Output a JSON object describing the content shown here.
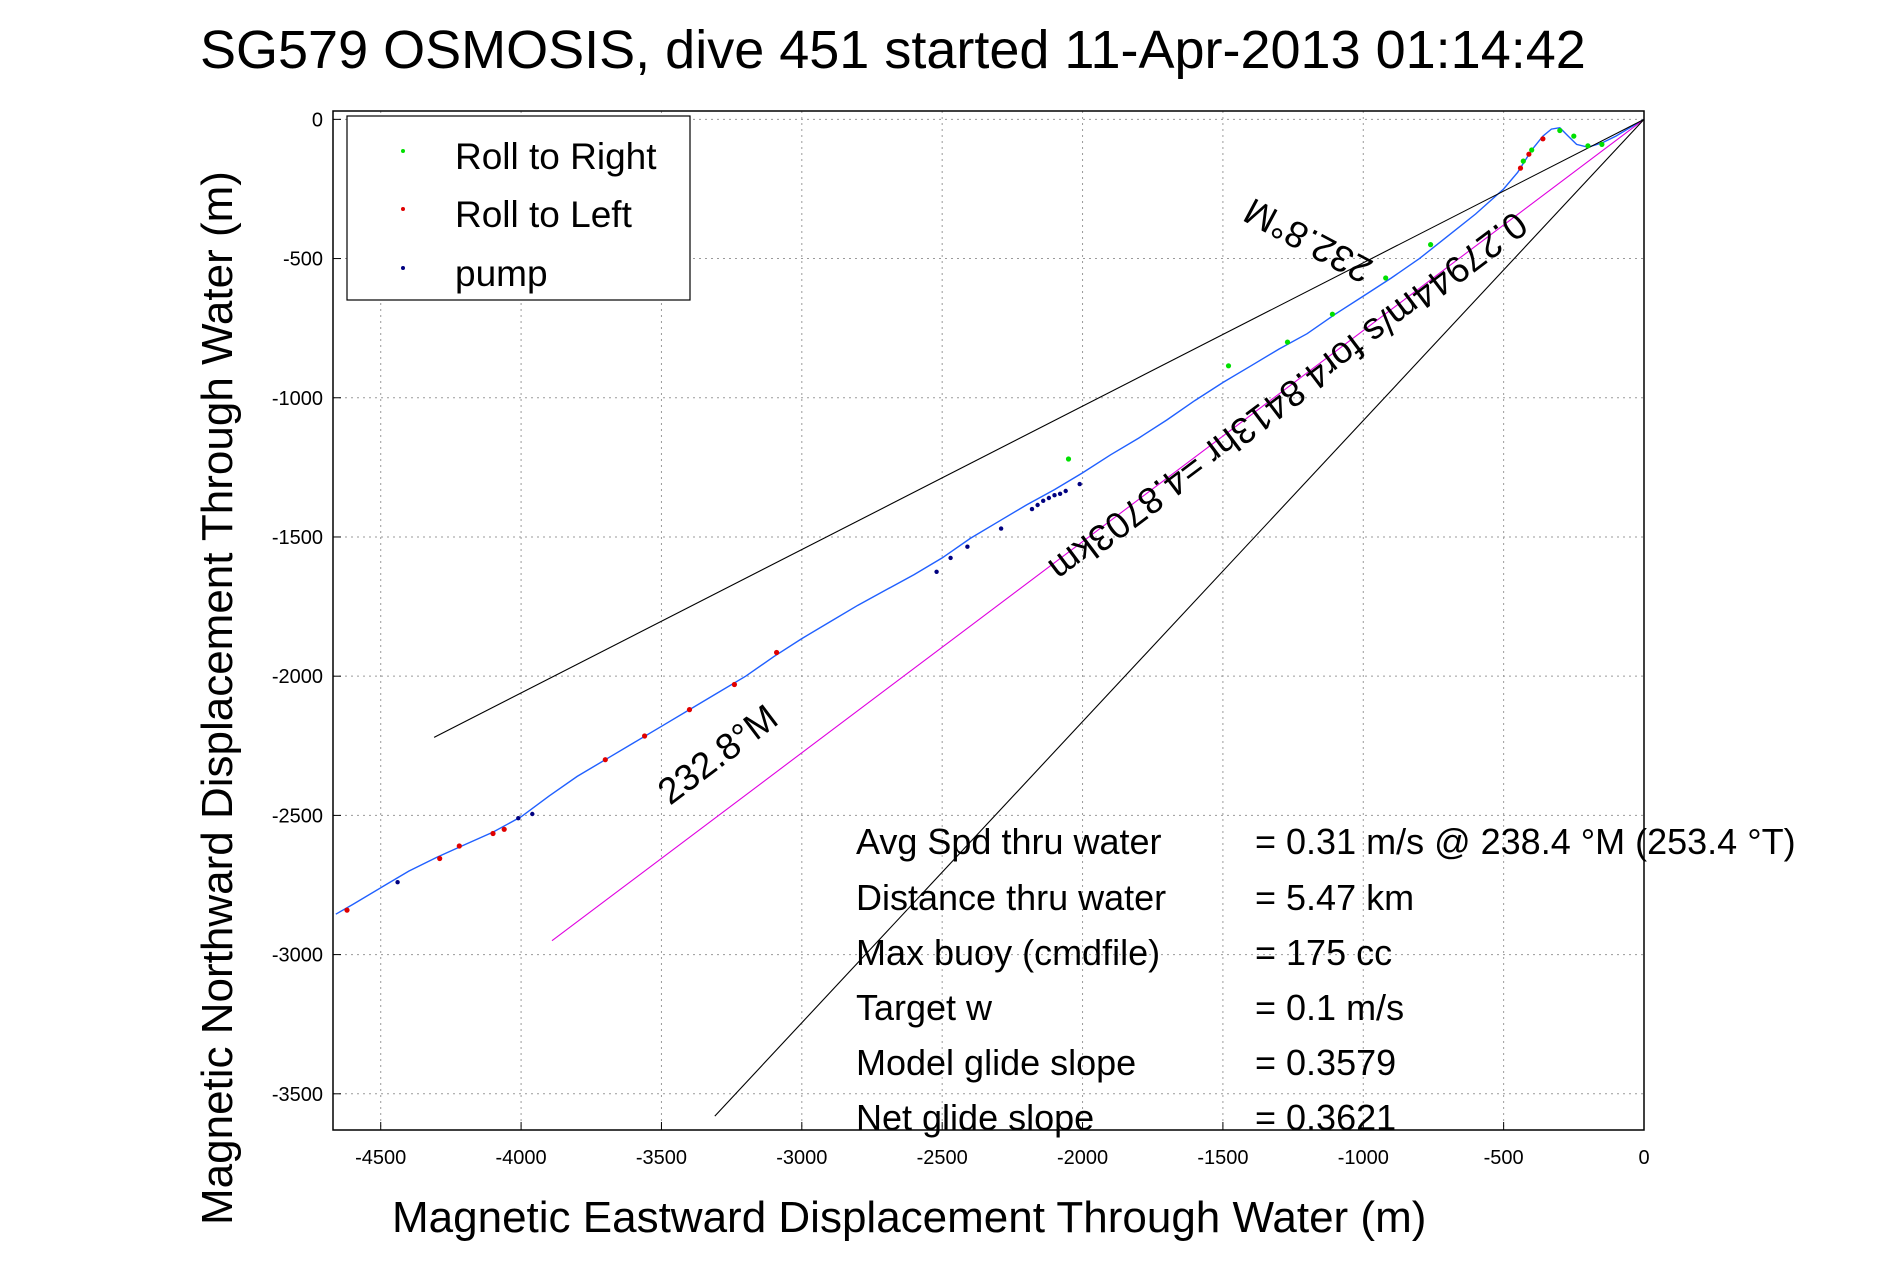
{
  "chart_data": {
    "type": "line",
    "title": "SG579 OSMOSIS, dive 451 started 11-Apr-2013 01:14:42",
    "xlabel": "Magnetic Eastward Displacement Through Water (m)",
    "ylabel": "Magnetic Northward Displacement Through Water (m)",
    "xlim": [
      -4670,
      0
    ],
    "ylim": [
      -3630,
      30
    ],
    "grid": true,
    "legend_position": "top-left",
    "x_ticks": [
      -4500,
      -4000,
      -3500,
      -3000,
      -2500,
      -2000,
      -1500,
      -1000,
      -500,
      0
    ],
    "x_tick_labels": [
      "-4500",
      "-4000",
      "-3500",
      "-3000",
      "-2500",
      "-2000",
      "-1500",
      "-1000",
      "-500",
      "0"
    ],
    "y_ticks": [
      0,
      -500,
      -1000,
      -1500,
      -2000,
      -2500,
      -3000,
      -3500
    ],
    "y_tick_labels": [
      "0",
      "-500",
      "-1000",
      "-1500",
      "-2000",
      "-2500",
      "-3000",
      "-3500"
    ],
    "legend": [
      {
        "label": "Roll to Right",
        "color": "#00e000"
      },
      {
        "label": "Roll to Left",
        "color": "#e00000"
      },
      {
        "label": "pump",
        "color": "#000080"
      }
    ],
    "series": [
      {
        "color": "#2060ff",
        "x": [
          -4660,
          -4600,
          -4500,
          -4400,
          -4300,
          -4200,
          -4100,
          -4000,
          -3900,
          -3800,
          -3700,
          -3600,
          -3500,
          -3400,
          -3300,
          -3200,
          -3100,
          -3000,
          -2900,
          -2800,
          -2700,
          -2600,
          -2500,
          -2400,
          -2300,
          -2200,
          -2100,
          -2000,
          -1900,
          -1800,
          -1700,
          -1600,
          -1500,
          -1400,
          -1300,
          -1200,
          -1100,
          -1000,
          -900,
          -800,
          -700,
          -600,
          -500,
          -450,
          -400,
          -360,
          -330,
          -300,
          -270,
          -240,
          -200,
          -150,
          -100,
          -50,
          0
        ],
        "y": [
          -2855,
          -2820,
          -2760,
          -2700,
          -2650,
          -2605,
          -2560,
          -2505,
          -2430,
          -2360,
          -2300,
          -2240,
          -2180,
          -2120,
          -2060,
          -2000,
          -1930,
          -1865,
          -1805,
          -1745,
          -1690,
          -1635,
          -1575,
          -1505,
          -1445,
          -1385,
          -1330,
          -1270,
          -1205,
          -1145,
          -1080,
          -1010,
          -945,
          -885,
          -825,
          -770,
          -700,
          -635,
          -570,
          -500,
          -420,
          -340,
          -250,
          -190,
          -110,
          -60,
          -35,
          -30,
          -60,
          -90,
          -100,
          -85,
          -60,
          -30,
          0
        ]
      },
      {
        "color": "#e000e0",
        "x": [
          -3890,
          0
        ],
        "y": [
          -2950,
          0
        ]
      },
      {
        "color": "#000000",
        "x": [
          -4310,
          0
        ],
        "y": [
          -2220,
          0
        ]
      },
      {
        "color": "#000000",
        "x": [
          0,
          -3310
        ],
        "y": [
          0,
          -3580
        ]
      }
    ],
    "roll_right_x": [
      -1480,
      -1270,
      -1110,
      -2050,
      -920,
      -760,
      -430,
      -400,
      -300,
      -250,
      -200,
      -150
    ],
    "roll_right_y": [
      -885,
      -800,
      -700,
      -1220,
      -570,
      -450,
      -150,
      -110,
      -40,
      -60,
      -95,
      -90
    ],
    "roll_left_x": [
      -4620,
      -4290,
      -4220,
      -4100,
      -4060,
      -3700,
      -3560,
      -3400,
      -3240,
      -3090,
      -440,
      -410,
      -360
    ],
    "roll_left_y": [
      -2840,
      -2655,
      -2610,
      -2565,
      -2550,
      -2300,
      -2215,
      -2120,
      -2030,
      -1915,
      -175,
      -125,
      -70
    ],
    "pump_x": [
      -4440,
      -4010,
      -3960,
      -2520,
      -2470,
      -2410,
      -2290,
      -2180,
      -2160,
      -2140,
      -2120,
      -2100,
      -2080,
      -2060,
      -2010
    ],
    "pump_y": [
      -2740,
      -2510,
      -2495,
      -1625,
      -1575,
      -1535,
      -1470,
      -1400,
      -1385,
      -1370,
      -1360,
      -1350,
      -1345,
      -1335,
      -1310
    ],
    "annotations": {
      "heading_label_1": "232.8°M",
      "heading_label_2": "232.8°M",
      "distance_label": "0.27944m/s for4.8413hr =4.8703km"
    },
    "stats": [
      {
        "label": "Avg Spd thru water",
        "value": "=  0.31 m/s @ 238.4 °M (253.4 °T)"
      },
      {
        "label": "Distance thru water",
        "value": "=  5.47 km"
      },
      {
        "label": "Max buoy (cmdfile)",
        "value": "= 175 cc"
      },
      {
        "label": "Target w",
        "value": "= 0.1 m/s"
      },
      {
        "label": "Model glide slope",
        "value": "= 0.3579"
      },
      {
        "label": "Net glide slope",
        "value": "= 0.3621"
      }
    ]
  }
}
